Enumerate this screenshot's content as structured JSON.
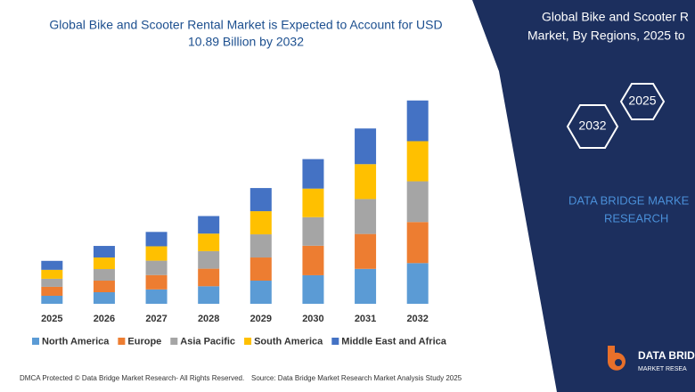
{
  "chart_data": {
    "type": "bar",
    "stacked": true,
    "title": [
      "Global Bike and Scooter Rental Market is Expected to Account for USD",
      "10.89 Billion by 2032"
    ],
    "categories": [
      "2025",
      "2026",
      "2027",
      "2028",
      "2029",
      "2030",
      "2031",
      "2032"
    ],
    "series": [
      {
        "name": "North America",
        "color": "#5b9bd5",
        "values": [
          0.43,
          0.62,
          0.77,
          0.94,
          1.24,
          1.53,
          1.87,
          2.18
        ]
      },
      {
        "name": "Europe",
        "color": "#ed7d31",
        "values": [
          0.48,
          0.62,
          0.77,
          0.94,
          1.24,
          1.58,
          1.87,
          2.2
        ]
      },
      {
        "name": "Asia Pacific",
        "color": "#a5a5a5",
        "values": [
          0.43,
          0.62,
          0.77,
          0.94,
          1.24,
          1.53,
          1.87,
          2.18
        ]
      },
      {
        "name": "South America",
        "color": "#ffc000",
        "values": [
          0.48,
          0.62,
          0.77,
          0.94,
          1.24,
          1.53,
          1.87,
          2.15
        ]
      },
      {
        "name": "Middle East and Africa",
        "color": "#4472c4",
        "values": [
          0.48,
          0.62,
          0.77,
          0.94,
          1.24,
          1.58,
          1.91,
          2.18
        ]
      }
    ],
    "ylim": [
      0,
      11.5
    ]
  },
  "panel": {
    "title": [
      "Global Bike and Scooter R",
      "Market, By Regions, 2025 to"
    ],
    "hex_start": "2025",
    "hex_end": "2032",
    "brand": [
      "DATA BRIDGE MARKE",
      "RESEARCH"
    ]
  },
  "logo": {
    "name": "DATA BRID",
    "tagline": "MARKET RESEA"
  },
  "footer": {
    "left": "DMCA Protected © Data Bridge Market Research- All Rights Reserved.",
    "right": "Source: Data Bridge Market Research Market Analysis Study 2025"
  }
}
